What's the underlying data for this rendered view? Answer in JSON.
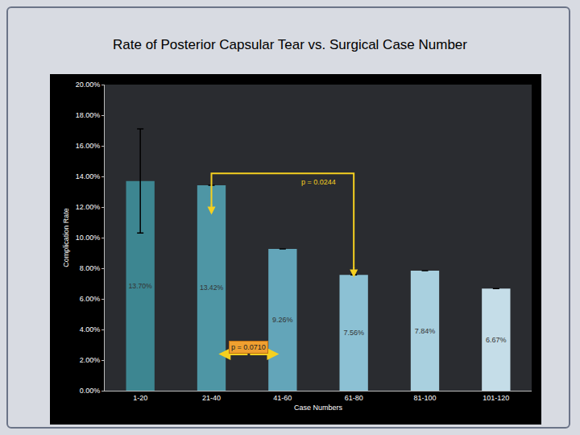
{
  "chart_data": {
    "type": "bar",
    "title": "Rate of Posterior Capsular Tear vs. Surgical Case Number",
    "x_label": "Case Numbers",
    "y_label": "Complication Rate",
    "categories": [
      "1-20",
      "21-40",
      "41-60",
      "61-80",
      "81-100",
      "101-120"
    ],
    "values": [
      13.7,
      13.42,
      9.26,
      7.56,
      7.84,
      6.67
    ],
    "value_labels": [
      "13.70%",
      "13.42%",
      "9.26%",
      "7.56%",
      "7.84%",
      "6.67%"
    ],
    "errors": [
      3.4,
      0,
      0,
      0,
      0,
      0
    ],
    "colors": [
      "#3d8691",
      "#4e96a5",
      "#63a5b9",
      "#8cc1d4",
      "#a9d0df",
      "#c5dde8"
    ],
    "ylim": [
      0,
      20
    ],
    "yticks": [
      {
        "value": 0,
        "label": "0.00%"
      },
      {
        "value": 2,
        "label": "2.00%"
      },
      {
        "value": 4,
        "label": "4.00%"
      },
      {
        "value": 6,
        "label": "6.00%"
      },
      {
        "value": 8,
        "label": "8.00%"
      },
      {
        "value": 10,
        "label": "10.00%"
      },
      {
        "value": 12,
        "label": "12.00%"
      },
      {
        "value": 14,
        "label": "14.00%"
      },
      {
        "value": 16,
        "label": "16.00%"
      },
      {
        "value": 18,
        "label": "18.00%"
      },
      {
        "value": 20,
        "label": "20.00%"
      }
    ],
    "grid": false,
    "data_labels": true,
    "annotations": [
      {
        "text": "p = 0.0244",
        "from": "21-40",
        "to": "61-80"
      },
      {
        "text": "p = 0.0710",
        "from": "21-40",
        "to": "41-60"
      }
    ]
  }
}
